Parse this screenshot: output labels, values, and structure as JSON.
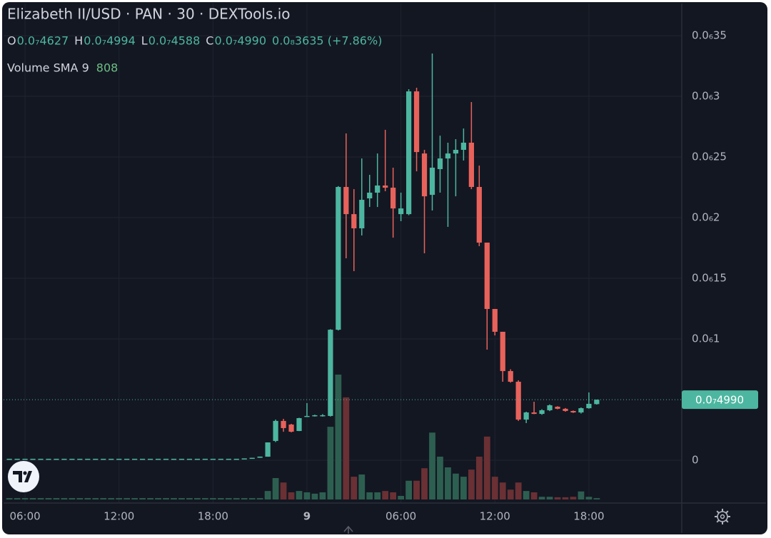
{
  "chart_data": {
    "type": "candlestick",
    "title": "Elizabeth II/USD · PAN · 30 · DEXTools.io",
    "ohlc_legend": [
      {
        "key": "O",
        "text": "0.0₇4627"
      },
      {
        "key": "H",
        "text": "0.0₇4994"
      },
      {
        "key": "L",
        "text": "0.0₇4588"
      },
      {
        "key": "C",
        "text": "0.0₇4990"
      }
    ],
    "change": "0.0₈3635 (+7.86%)",
    "volume_sma": {
      "label": "Volume SMA 9",
      "value": 808
    },
    "x": [
      5,
      5.5,
      6,
      6.5,
      7,
      7.5,
      8,
      8.5,
      9,
      9.5,
      10,
      10.5,
      11,
      11.5,
      12,
      12.5,
      13,
      13.5,
      14,
      14.5,
      15,
      15.5,
      16,
      16.5,
      17,
      17.5,
      18,
      18.5,
      19,
      19.5,
      20,
      20.5,
      21,
      21.5,
      22,
      22.5,
      23,
      23.5,
      24,
      24.5,
      25,
      25.5,
      26,
      26.5,
      27,
      27.5,
      28,
      28.5,
      29,
      29.5,
      30,
      30.5,
      31,
      31.5,
      32,
      32.5,
      33,
      33.5,
      34,
      34.5,
      35,
      35.5,
      36,
      36.5,
      37,
      37.5,
      38,
      38.5,
      39,
      39.5,
      40,
      40.5,
      41,
      41.5,
      42,
      42.5
    ],
    "open": [
      1.2e-09,
      1.2e-09,
      1.2e-09,
      1.2e-09,
      1.2e-09,
      1.2e-09,
      1.2e-09,
      1.2e-09,
      1.2e-09,
      1.2e-09,
      1.2e-09,
      1.2e-09,
      1.2e-09,
      1.2e-09,
      1.2e-09,
      1.2e-09,
      1.2e-09,
      1.2e-09,
      1.2e-09,
      1.2e-09,
      1.2e-09,
      1.2e-09,
      1.2e-09,
      1.2e-09,
      1.2e-09,
      1.2e-09,
      1.2e-09,
      1.2e-09,
      1.2e-09,
      1.2e-09,
      1.2e-09,
      1.5e-09,
      2e-09,
      2.9e-09,
      1.59e-08,
      3.24e-08,
      2.94e-08,
      2.41e-08,
      3.6e-08,
      3.65e-08,
      3.65e-08,
      3.65e-08,
      1.076e-07,
      2.253e-07,
      2.029e-07,
      1.912e-07,
      2.159e-07,
      2.206e-07,
      2.265e-07,
      2.247e-07,
      2.029e-07,
      2.029e-07,
      3.041e-07,
      2.529e-07,
      2.188e-07,
      2.4e-07,
      2.488e-07,
      2.529e-07,
      2.559e-07,
      2.618e-07,
      2.253e-07,
      1.794e-07,
      1.247e-07,
      1.059e-07,
      7.35e-08,
      6.47e-08,
      3.35e-08,
      3.94e-08,
      3.82e-08,
      4.12e-08,
      4.41e-08,
      4.24e-08,
      4.06e-08,
      3.94e-08,
      4.29e-08,
      4.627e-08
    ],
    "high": [
      1.2e-09,
      1.2e-09,
      1.2e-09,
      1.2e-09,
      1.2e-09,
      1.2e-09,
      1.2e-09,
      1.2e-09,
      1.2e-09,
      1.2e-09,
      1.2e-09,
      1.2e-09,
      1.2e-09,
      1.2e-09,
      1.2e-09,
      1.2e-09,
      1.2e-09,
      1.2e-09,
      1.2e-09,
      1.2e-09,
      1.2e-09,
      1.2e-09,
      1.2e-09,
      1.2e-09,
      1.2e-09,
      1.2e-09,
      1.2e-09,
      1.2e-09,
      1.2e-09,
      1.2e-09,
      1.5e-09,
      2e-09,
      3e-09,
      1.47e-08,
      3.35e-08,
      3.41e-08,
      3e-08,
      3.5e-08,
      4.71e-08,
      3.75e-08,
      3.8e-08,
      1.08e-07,
      2.26e-07,
      2.694e-07,
      2.235e-07,
      2.488e-07,
      2.353e-07,
      2.529e-07,
      2.724e-07,
      2.412e-07,
      2.206e-07,
      3.059e-07,
      3.071e-07,
      2.559e-07,
      3.353e-07,
      2.676e-07,
      2.618e-07,
      2.647e-07,
      2.735e-07,
      2.953e-07,
      2.429e-07,
      1.794e-07,
      1.247e-07,
      1.059e-07,
      7.5e-08,
      6.59e-08,
      4e-08,
      4.82e-08,
      4.2e-08,
      4.6e-08,
      4.45e-08,
      4.3e-08,
      4.1e-08,
      4.35e-08,
      5.59e-08,
      4.994e-08
    ],
    "low": [
      1.2e-09,
      1.2e-09,
      1.2e-09,
      1.2e-09,
      1.2e-09,
      1.2e-09,
      1.2e-09,
      1.2e-09,
      1.2e-09,
      1.2e-09,
      1.2e-09,
      1.2e-09,
      1.2e-09,
      1.2e-09,
      1.2e-09,
      1.2e-09,
      1.2e-09,
      1.2e-09,
      1.2e-09,
      1.2e-09,
      1.2e-09,
      1.2e-09,
      1.2e-09,
      1.2e-09,
      1.2e-09,
      1.2e-09,
      1.2e-09,
      1.2e-09,
      1.2e-09,
      1.2e-09,
      1.2e-09,
      1.5e-09,
      2e-09,
      2.9e-09,
      1.5e-08,
      2.35e-08,
      2.3e-08,
      2.4e-08,
      3.6e-08,
      3.6e-08,
      3.6e-08,
      3.6e-08,
      1.07e-07,
      1.665e-07,
      1.559e-07,
      1.853e-07,
      2.088e-07,
      2.088e-07,
      2.218e-07,
      1.835e-07,
      1.971e-07,
      2.02e-07,
      2.382e-07,
      1.706e-07,
      2.059e-07,
      2.206e-07,
      1.924e-07,
      2.176e-07,
      2.471e-07,
      2.235e-07,
      1.765e-07,
      9.12e-08,
      1.029e-07,
      6.47e-08,
      6.4e-08,
      3.24e-08,
      3.06e-08,
      3.8e-08,
      3.75e-08,
      4.05e-08,
      4.2e-08,
      4e-08,
      3.9e-08,
      3.85e-08,
      4.25e-08,
      4.588e-08
    ],
    "close": [
      1.2e-09,
      1.2e-09,
      1.2e-09,
      1.2e-09,
      1.2e-09,
      1.2e-09,
      1.2e-09,
      1.2e-09,
      1.2e-09,
      1.2e-09,
      1.2e-09,
      1.2e-09,
      1.2e-09,
      1.2e-09,
      1.2e-09,
      1.2e-09,
      1.2e-09,
      1.2e-09,
      1.2e-09,
      1.2e-09,
      1.2e-09,
      1.2e-09,
      1.2e-09,
      1.2e-09,
      1.2e-09,
      1.2e-09,
      1.2e-09,
      1.2e-09,
      1.2e-09,
      1.2e-09,
      1.5e-09,
      2e-09,
      3e-09,
      1.47e-08,
      3.24e-08,
      2.65e-08,
      2.35e-08,
      3.47e-08,
      3.65e-08,
      3.71e-08,
      3.71e-08,
      1.076e-07,
      2.253e-07,
      2.029e-07,
      1.912e-07,
      2.147e-07,
      2.206e-07,
      2.265e-07,
      2.247e-07,
      2.076e-07,
      2.076e-07,
      3.041e-07,
      2.541e-07,
      2.176e-07,
      2.412e-07,
      2.488e-07,
      2.529e-07,
      2.559e-07,
      2.618e-07,
      2.253e-07,
      1.794e-07,
      1.247e-07,
      1.059e-07,
      7.35e-08,
      6.47e-08,
      3.35e-08,
      3.94e-08,
      3.82e-08,
      4.12e-08,
      4.53e-08,
      4.24e-08,
      4.06e-08,
      3.94e-08,
      4.29e-08,
      4.65e-08,
      4.99e-08
    ],
    "volume": [
      300,
      300,
      300,
      300,
      300,
      300,
      300,
      300,
      300,
      300,
      300,
      300,
      300,
      300,
      300,
      300,
      300,
      300,
      300,
      300,
      300,
      300,
      300,
      300,
      300,
      300,
      300,
      300,
      300,
      300,
      300,
      300,
      300,
      1900,
      4800,
      3800,
      1600,
      1900,
      1600,
      1300,
      1600,
      16300,
      28000,
      22900,
      5100,
      5600,
      1600,
      1600,
      1900,
      1600,
      800,
      4200,
      4200,
      7000,
      15000,
      9600,
      7200,
      5800,
      5100,
      6700,
      9600,
      14100,
      5100,
      3800,
      2200,
      3800,
      1900,
      1600,
      600,
      600,
      500,
      500,
      600,
      1800,
      600,
      300
    ],
    "xlim": [
      4.63,
      47.93
    ],
    "xticks": [
      {
        "value": 6,
        "label": "06:00"
      },
      {
        "value": 12,
        "label": "12:00"
      },
      {
        "value": 18,
        "label": "18:00"
      },
      {
        "value": 24,
        "label": "9"
      },
      {
        "value": 30,
        "label": "06:00"
      },
      {
        "value": 36,
        "label": "12:00"
      },
      {
        "value": 42,
        "label": "18:00"
      }
    ],
    "ylim": [
      -3.53e-08,
      3.765e-07
    ],
    "yticks": [
      0,
      {
        "value": 1e-07,
        "label": "0.0₆1"
      },
      {
        "value": 1.5e-07,
        "label": "0.0₆15"
      },
      {
        "value": 2e-07,
        "label": "0.0₆2"
      },
      {
        "value": 2.5e-07,
        "label": "0.0₆25"
      },
      {
        "value": 3e-07,
        "label": "0.0₆3"
      },
      {
        "value": 3.5e-07,
        "label": "0.0₆35"
      }
    ],
    "volume_lim": [
      0,
      111200
    ],
    "last_price": {
      "value": 4.99e-08,
      "label": "0.0₇4990"
    },
    "grid": true,
    "up_color": "#4db6a0",
    "down_color": "#e8625b",
    "volume_up_color": "#2d5f50",
    "volume_down_color": "#6a3034"
  }
}
